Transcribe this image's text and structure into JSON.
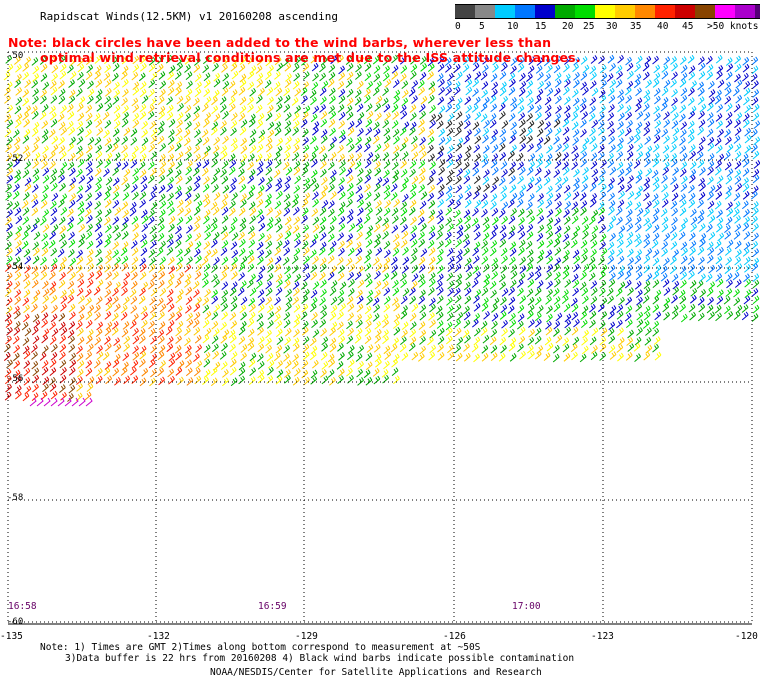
{
  "title": "Rapidscat Winds(12.5KM)  v1  20160208  ascending",
  "note_line1": "Note: black circles have been added to the wind barbs, wherever less than",
  "note_line2": "optimal wind retrieval conditions are met due to the ISS attitude changes.",
  "scale": {
    "labels": [
      "0",
      "5",
      "10",
      "15",
      "20",
      "25",
      "30",
      "35",
      "40",
      "45",
      ">50 knots"
    ],
    "colors": [
      "#444444",
      "#888888",
      "#00ccff",
      "#0077ff",
      "#0000cc",
      "#00aa00",
      "#00dd00",
      "#ffff00",
      "#ffcc00",
      "#ff8800",
      "#ff2200",
      "#cc0000",
      "#884400",
      "#ff00ff",
      "#aa00cc",
      "#550077"
    ]
  },
  "lat_labels": [
    "-50",
    "-52",
    "-54",
    "-56",
    "-58",
    "-60"
  ],
  "lon_labels": [
    "-135",
    "-132",
    "-129",
    "-126",
    "-123",
    "-120"
  ],
  "time_labels": [
    "16:58",
    "16:59",
    "17:00"
  ],
  "footer": {
    "line1": "Note: 1) Times are GMT 2)Times along bottom correspond to measurement at ~50S",
    "line2": "3)Data buffer is 22 hrs from 20160208 4) Black wind barbs indicate possible contamination",
    "line3": "NOAA/NESDIS/Center for Satellite Applications and Research"
  },
  "map_data": {
    "bounds": {
      "lon": [
        -135,
        -120
      ],
      "lat": [
        -60,
        -50
      ]
    }
  }
}
